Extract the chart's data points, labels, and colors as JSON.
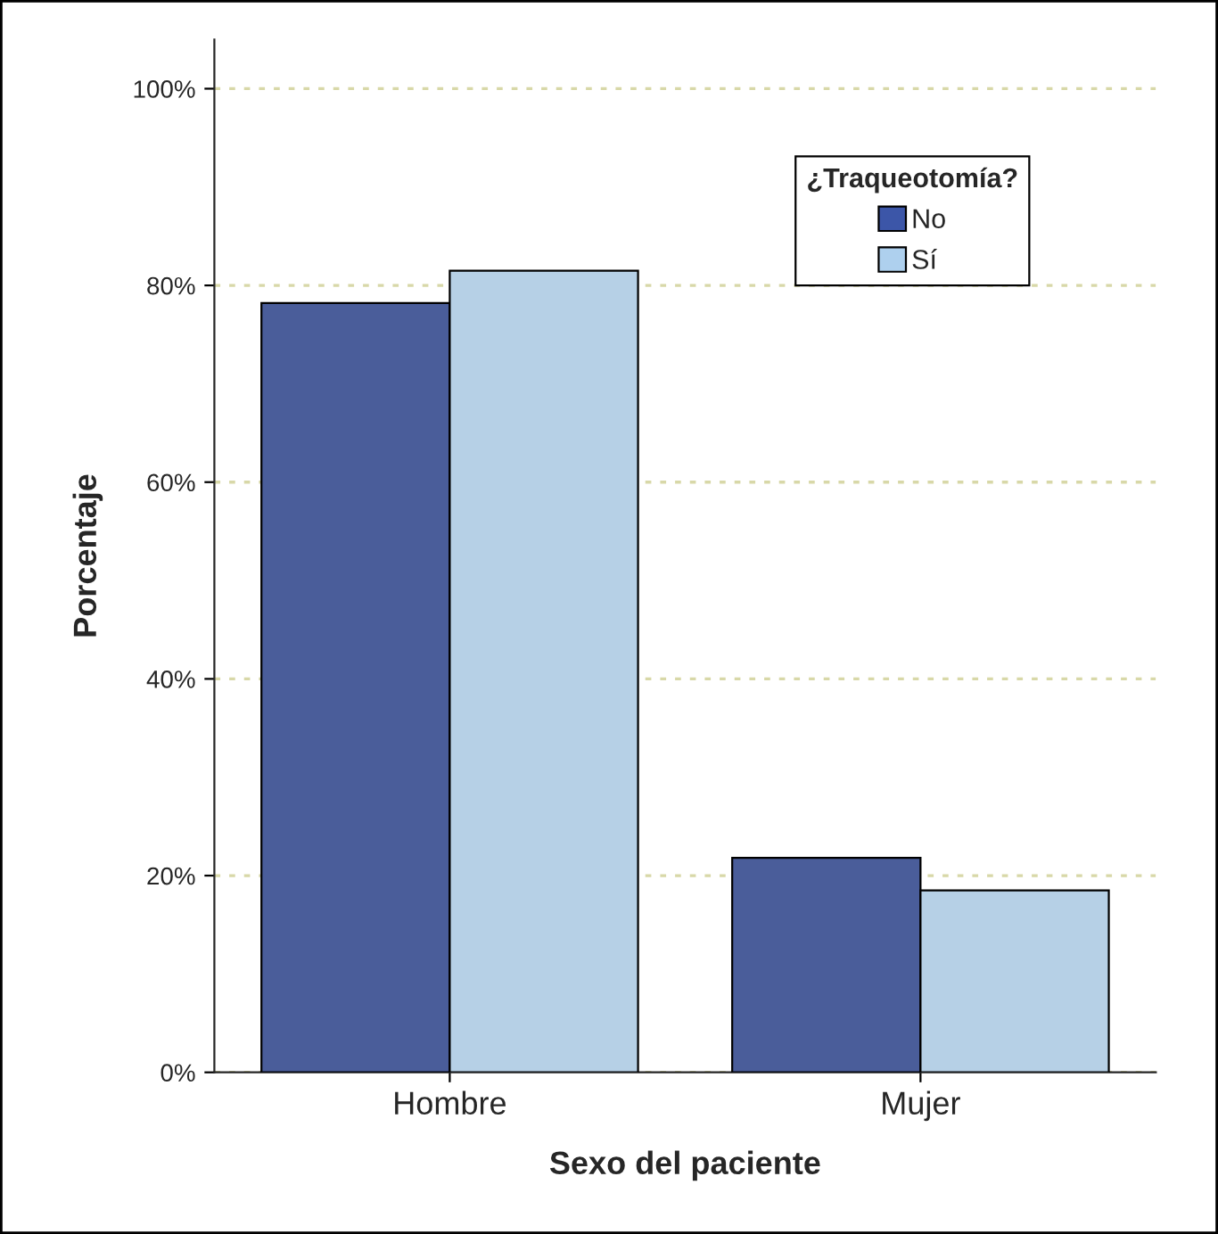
{
  "chart_data": {
    "type": "bar",
    "xlabel": "Sexo del paciente",
    "ylabel": "Porcentaje",
    "legend_title": "¿Traqueotomía?",
    "categories": [
      "Hombre",
      "Mujer"
    ],
    "series": [
      {
        "name": "No",
        "color": "#3c56a8",
        "values": [
          78.2,
          21.8
        ]
      },
      {
        "name": "Sí",
        "color": "#aed0ee",
        "values": [
          81.5,
          18.5
        ]
      }
    ],
    "ylim": [
      0,
      105
    ],
    "yticks": [
      {
        "value": 0,
        "label": "0%"
      },
      {
        "value": 20,
        "label": "20%"
      },
      {
        "value": 40,
        "label": "40%"
      },
      {
        "value": 60,
        "label": "60%"
      },
      {
        "value": 80,
        "label": "80%"
      },
      {
        "value": 100,
        "label": "100%"
      }
    ],
    "grid": "y",
    "legend": "top right"
  }
}
